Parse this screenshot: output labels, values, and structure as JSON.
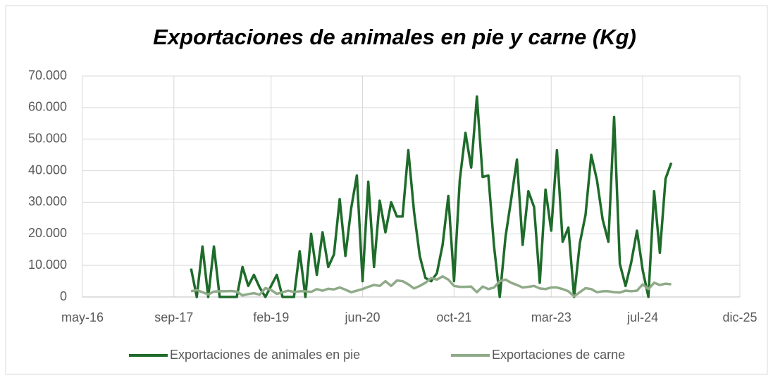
{
  "chart_data": {
    "type": "line",
    "title": "Exportaciones de animales en pie y carne (Kg)",
    "x": [
      "2017-12",
      "2018-01",
      "2018-02",
      "2018-03",
      "2018-04",
      "2018-05",
      "2018-06",
      "2018-07",
      "2018-08",
      "2018-09",
      "2018-10",
      "2018-11",
      "2018-12",
      "2019-01",
      "2019-02",
      "2019-03",
      "2019-04",
      "2019-05",
      "2019-06",
      "2019-07",
      "2019-08",
      "2019-09",
      "2019-10",
      "2019-11",
      "2019-12",
      "2020-01",
      "2020-02",
      "2020-03",
      "2020-04",
      "2020-05",
      "2020-06",
      "2020-07",
      "2020-08",
      "2020-09",
      "2020-10",
      "2020-11",
      "2020-12",
      "2021-01",
      "2021-02",
      "2021-03",
      "2021-04",
      "2021-05",
      "2021-06",
      "2021-07",
      "2021-08",
      "2021-09",
      "2021-10",
      "2021-11",
      "2021-12",
      "2022-01",
      "2022-02",
      "2022-03",
      "2022-04",
      "2022-05",
      "2022-06",
      "2022-07",
      "2022-08",
      "2022-09",
      "2022-10",
      "2022-11",
      "2022-12",
      "2023-01",
      "2023-02",
      "2023-03",
      "2023-04",
      "2023-05",
      "2023-06",
      "2023-07",
      "2023-08",
      "2023-09",
      "2023-10",
      "2023-11",
      "2023-12",
      "2024-01",
      "2024-02",
      "2024-03",
      "2024-04",
      "2024-05",
      "2024-06",
      "2024-07",
      "2024-08",
      "2024-09",
      "2024-10",
      "2024-11",
      "2024-12"
    ],
    "series": [
      {
        "name": "Exportaciones de animales en pie",
        "color": "#1e6b2a",
        "values": [
          9000,
          0,
          16000,
          0,
          16000,
          0,
          0,
          0,
          0,
          9500,
          3500,
          7000,
          3000,
          0,
          3500,
          7000,
          0,
          0,
          0,
          14500,
          0,
          20000,
          7000,
          20500,
          9500,
          13500,
          31000,
          13000,
          28000,
          38500,
          5000,
          36500,
          9500,
          30500,
          20500,
          30000,
          25500,
          25500,
          46500,
          27000,
          13000,
          6000,
          5000,
          7500,
          16500,
          32000,
          5000,
          37000,
          52000,
          41000,
          63500,
          38000,
          38500,
          16000,
          0,
          19000,
          31000,
          43500,
          16500,
          33500,
          28500,
          4500,
          34000,
          21000,
          46500,
          17500,
          22000,
          0,
          17000,
          26000,
          45000,
          37000,
          24500,
          17500,
          57000,
          10500,
          3500,
          11000,
          21000,
          8500,
          0,
          33500,
          14000,
          37500,
          42500
        ]
      },
      {
        "name": "Exportaciones de carne",
        "color": "#8faa88",
        "values": [
          1800,
          2200,
          1500,
          800,
          1700,
          1800,
          1800,
          1900,
          1700,
          500,
          900,
          1200,
          700,
          2800,
          2200,
          1000,
          1500,
          2000,
          1600,
          1800,
          1800,
          1600,
          2500,
          2000,
          2600,
          2400,
          3000,
          2300,
          1500,
          2000,
          2500,
          3200,
          3800,
          3500,
          5000,
          3500,
          5200,
          5000,
          4000,
          2700,
          3500,
          4500,
          6000,
          5500,
          6500,
          5500,
          3500,
          3200,
          3200,
          3300,
          1500,
          3300,
          2500,
          3000,
          5000,
          5500,
          4500,
          3800,
          3000,
          3200,
          3500,
          2700,
          2500,
          3000,
          3000,
          2500,
          1800,
          200,
          1500,
          2800,
          2500,
          1500,
          1800,
          1800,
          1500,
          1400,
          2000,
          1800,
          2000,
          4000,
          2500,
          4500,
          3800,
          4200,
          4000
        ]
      }
    ],
    "xlim": [
      "2016-05",
      "2025-12"
    ],
    "xticks": [
      {
        "value": "2016-05",
        "label": "may-16"
      },
      {
        "value": "2017-09",
        "label": "sep-17"
      },
      {
        "value": "2019-02",
        "label": "feb-19"
      },
      {
        "value": "2020-06",
        "label": "jun-20"
      },
      {
        "value": "2021-10",
        "label": "oct-21"
      },
      {
        "value": "2023-03",
        "label": "mar-23"
      },
      {
        "value": "2024-07",
        "label": "jul-24"
      },
      {
        "value": "2025-12",
        "label": "dic-25"
      }
    ],
    "ylim": [
      0,
      70000
    ],
    "yticks": [
      0,
      {
        "value": 10000,
        "label": "10.000"
      },
      {
        "value": 20000,
        "label": "20.000"
      },
      {
        "value": 30000,
        "label": "30.000"
      },
      {
        "value": 40000,
        "label": "40.000"
      },
      {
        "value": 50000,
        "label": "50.000"
      },
      {
        "value": 60000,
        "label": "60.000"
      },
      {
        "value": 70000,
        "label": "70.000"
      }
    ],
    "grid": true,
    "legend": "bottom"
  }
}
